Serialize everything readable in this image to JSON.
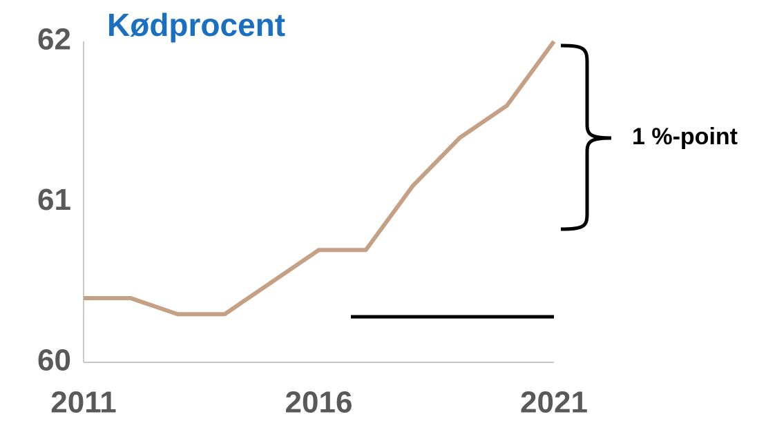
{
  "chart_data": {
    "type": "line",
    "title": "Kødprocent",
    "x": [
      2011,
      2012,
      2013,
      2014,
      2015,
      2016,
      2017,
      2018,
      2019,
      2020,
      2021
    ],
    "series": [
      {
        "name": "Kødprocent",
        "color": "#c4a084",
        "values": [
          60.4,
          60.4,
          60.3,
          60.3,
          60.5,
          60.7,
          60.7,
          61.1,
          61.4,
          61.6,
          62.0
        ]
      }
    ],
    "xlim": [
      2011,
      2021
    ],
    "xticks": [
      2011,
      2016,
      2021
    ],
    "ylim": [
      60,
      62
    ],
    "yticks": [
      60,
      61,
      62
    ],
    "grid": false,
    "annotations": [
      "1 %-point"
    ]
  }
}
